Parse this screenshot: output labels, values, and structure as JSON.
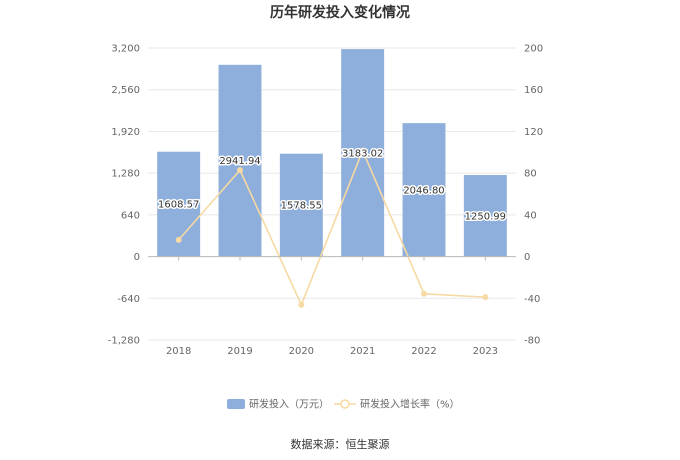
{
  "chart_data": {
    "type": "bar",
    "title": "历年研发投入变化情况",
    "categories": [
      "2018",
      "2019",
      "2020",
      "2021",
      "2022",
      "2023"
    ],
    "series": [
      {
        "name": "研发投入（万元）",
        "type": "bar",
        "axis": "left",
        "color": "#8eaedb",
        "values": [
          1608.57,
          2941.94,
          1578.55,
          3183.02,
          2046.8,
          1250.99
        ],
        "labels": [
          "1608.57",
          "2941.94",
          "1578.55",
          "3183.02",
          "2046.80",
          "1250.99"
        ]
      },
      {
        "name": "研发投入增长率（%）",
        "type": "line",
        "axis": "right",
        "color": "#f7d9a3",
        "values": [
          16.0,
          82.9,
          -46.3,
          101.6,
          -35.7,
          -38.9
        ]
      }
    ],
    "y_left": {
      "ylim": [
        -1280,
        3200
      ],
      "ticks": [
        -1280,
        -640,
        0,
        640,
        1280,
        1920,
        2560,
        3200
      ],
      "tick_labels": [
        "-1,280",
        "-640",
        "0",
        "640",
        "1,280",
        "1,920",
        "2,560",
        "3,200"
      ]
    },
    "y_right": {
      "ylim": [
        -80,
        200
      ],
      "ticks": [
        -80,
        -40,
        0,
        40,
        80,
        120,
        160,
        200
      ],
      "tick_labels": [
        "-80",
        "-40",
        "0",
        "40",
        "80",
        "120",
        "160",
        "200"
      ]
    },
    "grid": true,
    "legend_position": "bottom-center",
    "source": "数据来源：恒生聚源"
  }
}
